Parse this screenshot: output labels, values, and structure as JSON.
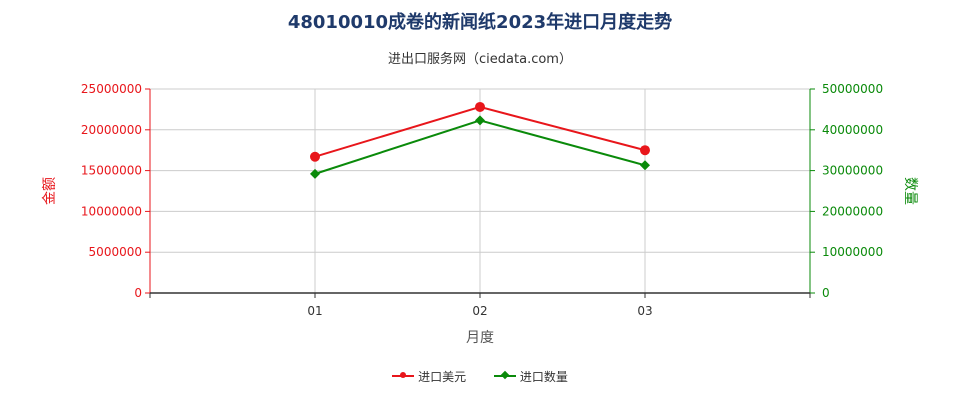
{
  "chart_data": {
    "type": "line",
    "title": "48010010成卷的新闻纸2023年进口月度走势",
    "subtitle": "进出口服务网（ciedata.com）",
    "xlabel": "月度",
    "ylabel_left": "金额",
    "ylabel_right": "数量",
    "categories": [
      "01",
      "02",
      "03"
    ],
    "ylim_left": [
      0,
      25000000
    ],
    "ylim_right": [
      0,
      50000000
    ],
    "yticks_left": [
      "0",
      "5000000",
      "10000000",
      "15000000",
      "20000000",
      "25000000"
    ],
    "yticks_right": [
      "0",
      "10000000",
      "20000000",
      "30000000",
      "40000000",
      "50000000"
    ],
    "series": [
      {
        "name": "进口美元",
        "axis": "left",
        "color": "#e8161b",
        "marker": "circle",
        "values": [
          16700000,
          22800000,
          17500000
        ]
      },
      {
        "name": "进口数量",
        "axis": "right",
        "color": "#0a8a0a",
        "marker": "diamond",
        "values": [
          29200000,
          42300000,
          31300000
        ]
      }
    ],
    "grid": true,
    "legend_position": "bottom"
  },
  "colors": {
    "title": "#1f3a6b",
    "left_axis": "#e8161b",
    "right_axis": "#0a8a0a",
    "grid": "#cccccc",
    "axis_line": "#333333"
  }
}
